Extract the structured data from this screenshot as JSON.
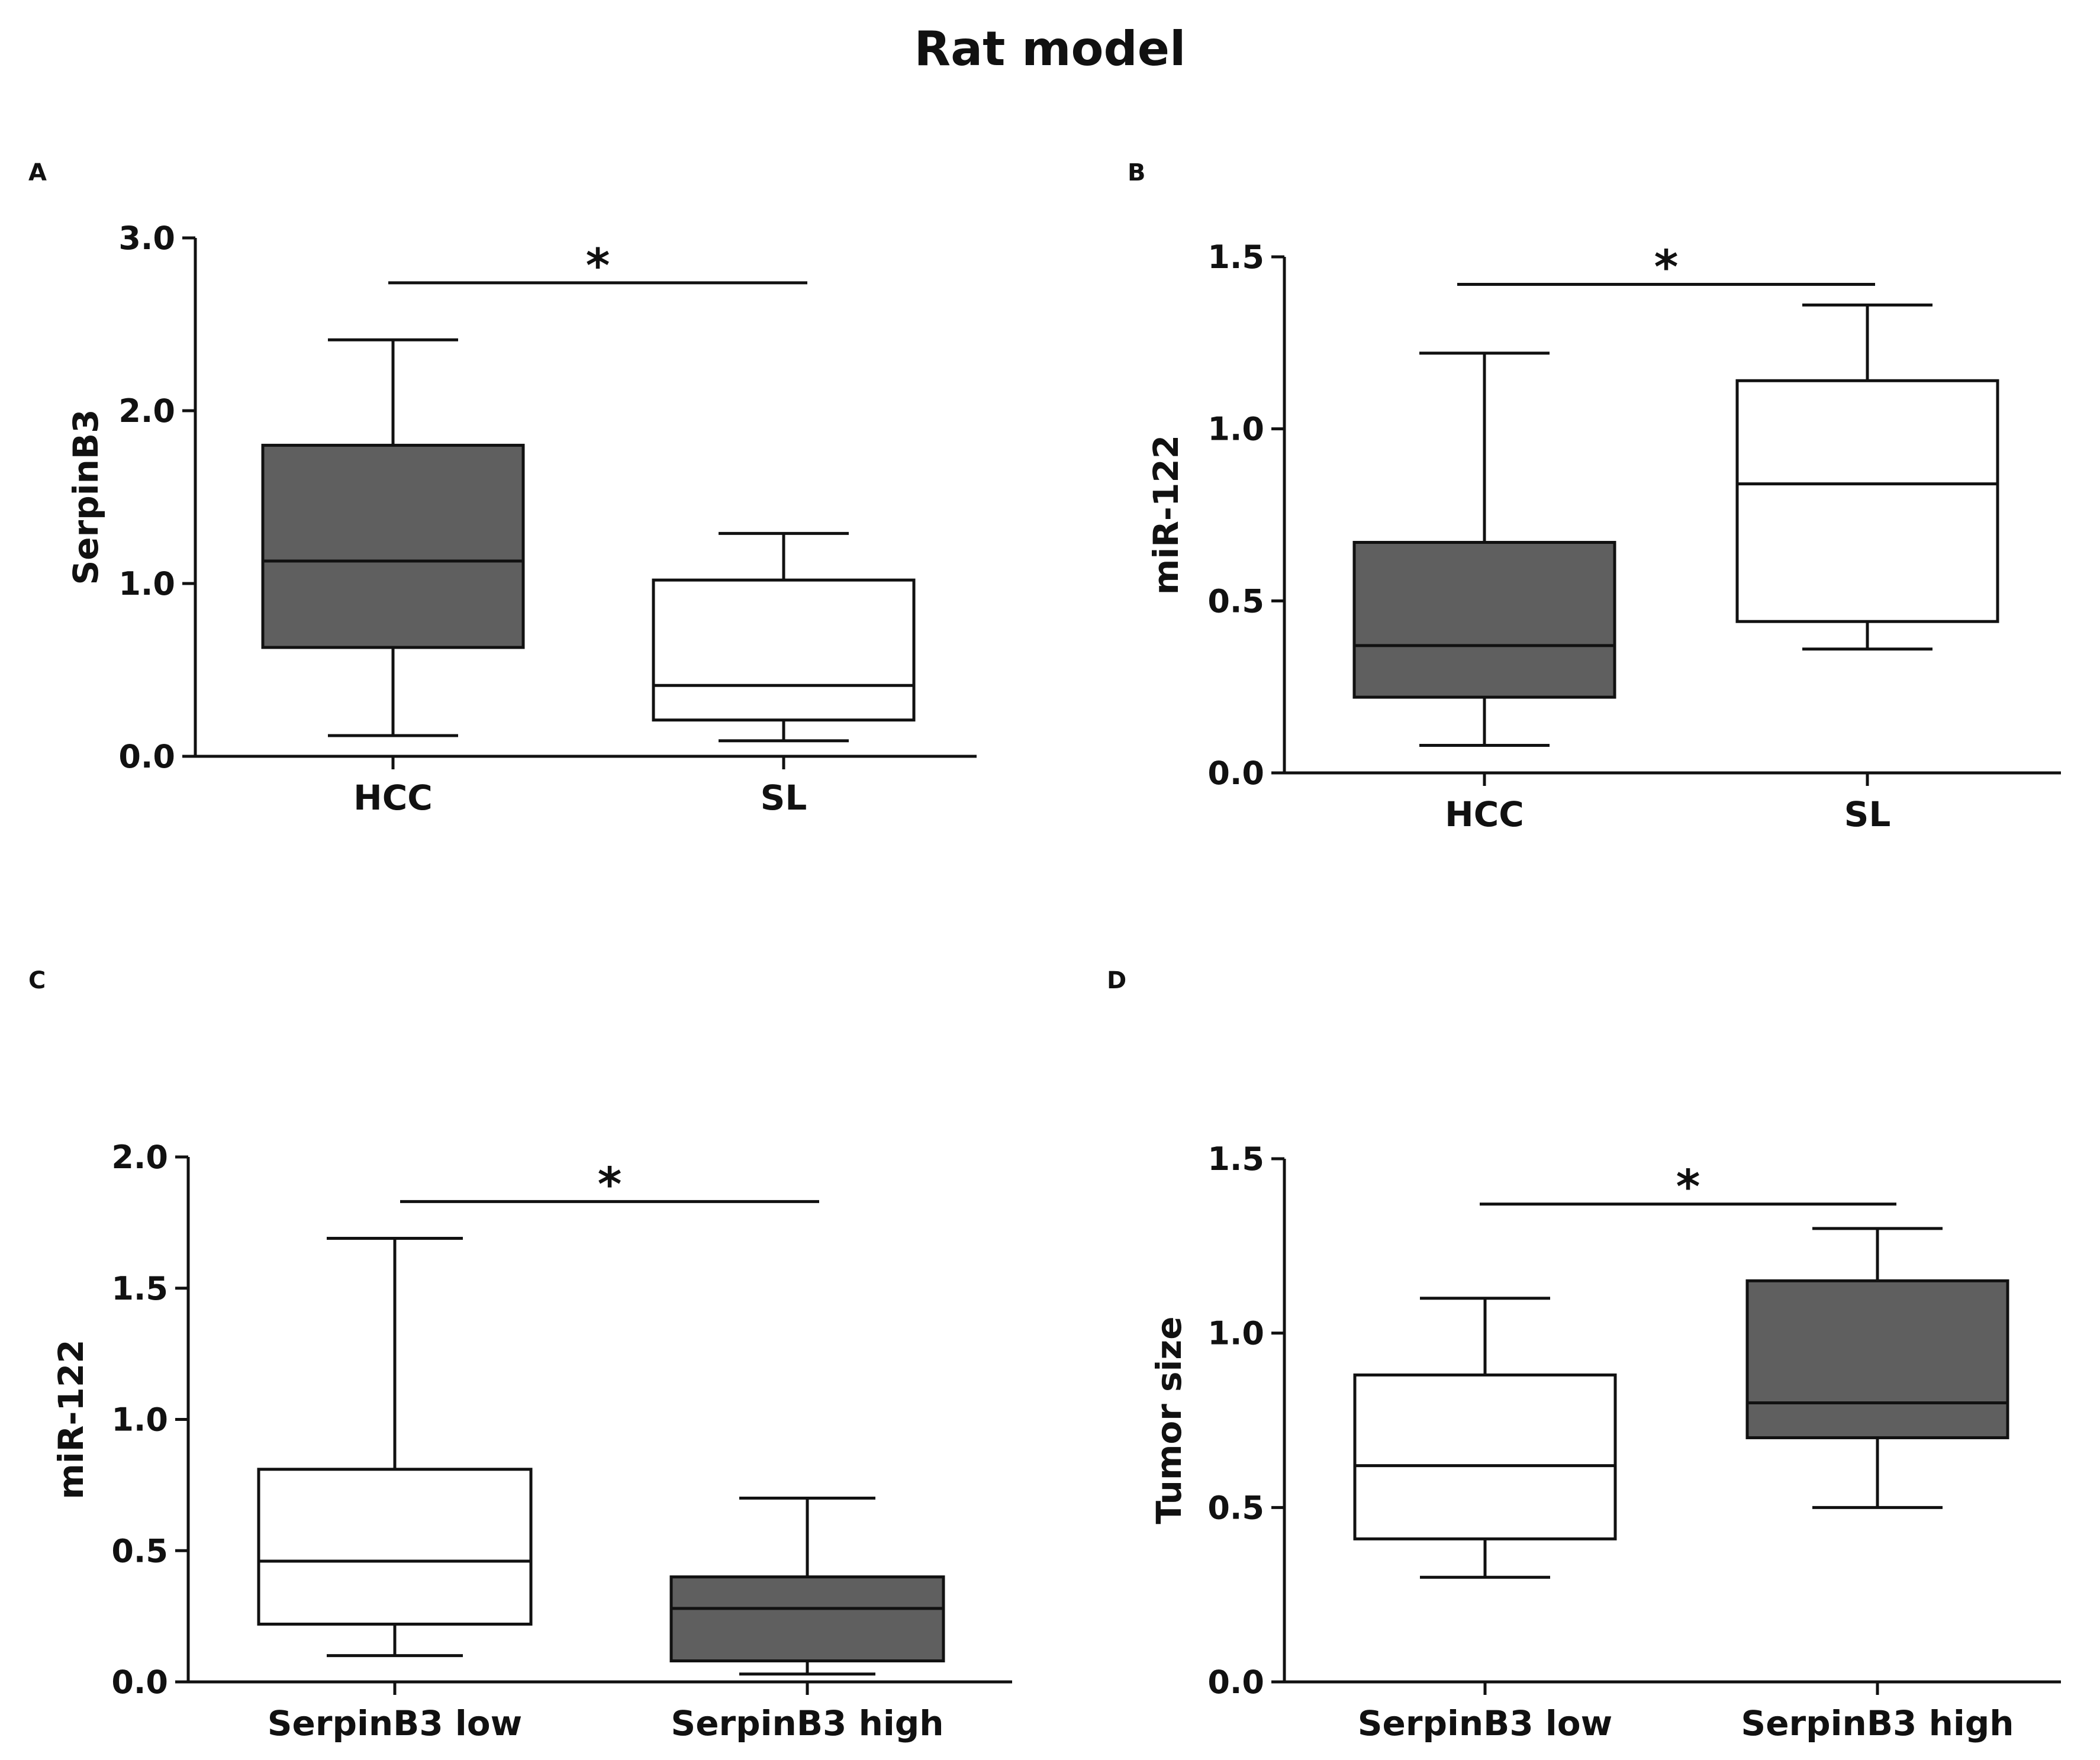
{
  "figure": {
    "title": "Rat model"
  },
  "chart_data": [
    {
      "panel": "A",
      "type": "box",
      "ylabel": "SerpinB3",
      "ylim": [
        0,
        3.0
      ],
      "yticks": [
        "0.0",
        "1.0",
        "2.0",
        "3.0"
      ],
      "yticks_values": [
        0,
        1,
        2,
        3
      ],
      "categories": [
        "HCC",
        "SL"
      ],
      "boxes": [
        {
          "category": "HCC",
          "min": 0.12,
          "q1": 0.63,
          "median": 1.13,
          "q3": 1.8,
          "max": 2.41,
          "fill": "#5f5f5f"
        },
        {
          "category": "SL",
          "min": 0.09,
          "q1": 0.21,
          "median": 0.41,
          "q3": 1.02,
          "max": 1.29,
          "fill": "#ffffff"
        }
      ],
      "significance": {
        "text": "*",
        "y": 2.74
      }
    },
    {
      "panel": "B",
      "type": "box",
      "ylabel": "miR-122",
      "ylim": [
        0,
        1.5
      ],
      "yticks": [
        "0.0",
        "0.5",
        "1.0",
        "1.5"
      ],
      "yticks_values": [
        0,
        0.5,
        1.0,
        1.5
      ],
      "categories": [
        "HCC",
        "SL"
      ],
      "boxes": [
        {
          "category": "HCC",
          "min": 0.08,
          "q1": 0.22,
          "median": 0.37,
          "q3": 0.67,
          "max": 1.22,
          "fill": "#5f5f5f"
        },
        {
          "category": "SL",
          "min": 0.36,
          "q1": 0.44,
          "median": 0.84,
          "q3": 1.14,
          "max": 1.36,
          "fill": "#ffffff"
        }
      ],
      "significance": {
        "text": "*",
        "y": 1.42
      }
    },
    {
      "panel": "C",
      "type": "box",
      "ylabel": "miR-122",
      "ylim": [
        0,
        2.0
      ],
      "yticks": [
        "0.0",
        "0.5",
        "1.0",
        "1.5",
        "2.0"
      ],
      "yticks_values": [
        0,
        0.5,
        1.0,
        1.5,
        2.0
      ],
      "categories": [
        "SerpinB3 low",
        "SerpinB3 high"
      ],
      "boxes": [
        {
          "category": "SerpinB3 low",
          "min": 0.1,
          "q1": 0.22,
          "median": 0.46,
          "q3": 0.81,
          "max": 1.69,
          "fill": "#ffffff"
        },
        {
          "category": "SerpinB3 high",
          "min": 0.03,
          "q1": 0.08,
          "median": 0.28,
          "q3": 0.4,
          "max": 0.7,
          "fill": "#5f5f5f"
        }
      ],
      "significance": {
        "text": "*",
        "y": 1.83
      }
    },
    {
      "panel": "D",
      "type": "box",
      "ylabel": "Tumor size",
      "ylim": [
        0,
        1.5
      ],
      "yticks": [
        "0.0",
        "0.5",
        "1.0",
        "1.5"
      ],
      "yticks_values": [
        0,
        0.5,
        1.0,
        1.5
      ],
      "categories": [
        "SerpinB3 low",
        "SerpinB3 high"
      ],
      "boxes": [
        {
          "category": "SerpinB3 low",
          "min": 0.3,
          "q1": 0.41,
          "median": 0.62,
          "q3": 0.88,
          "max": 1.1,
          "fill": "#ffffff"
        },
        {
          "category": "SerpinB3 high",
          "min": 0.5,
          "q1": 0.7,
          "median": 0.8,
          "q3": 1.15,
          "max": 1.3,
          "fill": "#5f5f5f"
        }
      ],
      "significance": {
        "text": "*",
        "y": 1.37
      }
    }
  ]
}
